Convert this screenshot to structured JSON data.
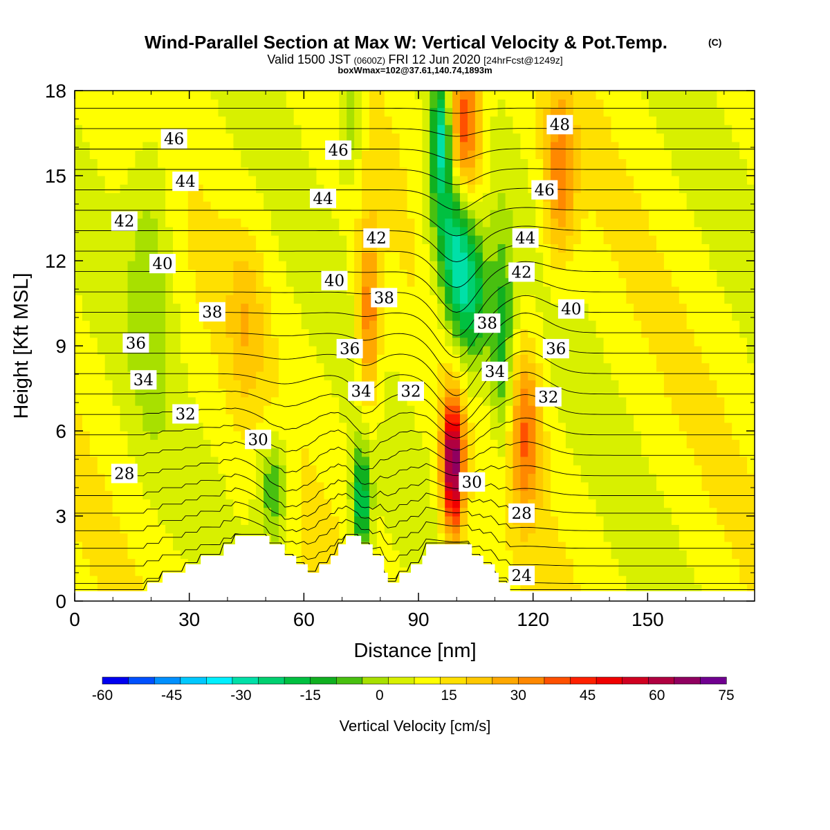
{
  "header": {
    "title": "Wind-Parallel Section at Max W: Vertical Velocity & Pot.Temp.",
    "copyright": "(C)",
    "valid_prefix": "Valid 1500 JST",
    "valid_utc": "(0600Z)",
    "valid_date": "FRI 12 Jun 2020",
    "forecast": "[24hrFcst@1249z]",
    "boxinfo": "boxWmax=102@37.61,140.74,1893m"
  },
  "colorbar": {
    "label": "Vertical Velocity [cm/s]",
    "ticks": [
      "-60",
      "-45",
      "-30",
      "-15",
      "0",
      "15",
      "30",
      "45",
      "60",
      "75"
    ],
    "min": -60,
    "max": 75,
    "step": 5,
    "colors": [
      "#0000f0",
      "#0050ff",
      "#0090ff",
      "#00c8ff",
      "#00f0ff",
      "#00e0a8",
      "#00d070",
      "#00c040",
      "#10b020",
      "#48c010",
      "#a8e000",
      "#d8f000",
      "#ffff00",
      "#ffe000",
      "#ffc800",
      "#ffa800",
      "#ff8800",
      "#ff5000",
      "#ff2000",
      "#f00000",
      "#d00020",
      "#b00040",
      "#900060",
      "#700090"
    ]
  },
  "chart_data": {
    "type": "heatmap",
    "xlabel": "Distance [nm]",
    "ylabel": "Height [Kft MSL]",
    "xlim": [
      0,
      178
    ],
    "ylim": [
      0,
      18
    ],
    "xticks": [
      "0",
      "30",
      "60",
      "90",
      "120",
      "150"
    ],
    "yticks": [
      "0",
      "3",
      "6",
      "9",
      "12",
      "15",
      "18"
    ],
    "contour_field": "Potential temperature",
    "contour_interval": 1,
    "contour_labels": [
      {
        "text": "46",
        "x": 26,
        "y": 16.3
      },
      {
        "text": "44",
        "x": 29,
        "y": 14.8
      },
      {
        "text": "42",
        "x": 13,
        "y": 13.4
      },
      {
        "text": "40",
        "x": 23,
        "y": 11.9
      },
      {
        "text": "38",
        "x": 36,
        "y": 10.2
      },
      {
        "text": "36",
        "x": 16,
        "y": 9.1
      },
      {
        "text": "34",
        "x": 18,
        "y": 7.8
      },
      {
        "text": "32",
        "x": 29,
        "y": 6.6
      },
      {
        "text": "30",
        "x": 48,
        "y": 5.7
      },
      {
        "text": "28",
        "x": 13,
        "y": 4.5
      },
      {
        "text": "46",
        "x": 69,
        "y": 15.9
      },
      {
        "text": "44",
        "x": 65,
        "y": 14.2
      },
      {
        "text": "42",
        "x": 79,
        "y": 12.8
      },
      {
        "text": "40",
        "x": 68,
        "y": 11.3
      },
      {
        "text": "38",
        "x": 81,
        "y": 10.7
      },
      {
        "text": "36",
        "x": 72,
        "y": 8.9
      },
      {
        "text": "34",
        "x": 75,
        "y": 7.4
      },
      {
        "text": "32",
        "x": 88,
        "y": 7.4
      },
      {
        "text": "30",
        "x": 104,
        "y": 4.2
      },
      {
        "text": "48",
        "x": 127,
        "y": 16.8
      },
      {
        "text": "46",
        "x": 123,
        "y": 14.5
      },
      {
        "text": "44",
        "x": 118,
        "y": 12.8
      },
      {
        "text": "42",
        "x": 117,
        "y": 11.6
      },
      {
        "text": "40",
        "x": 130,
        "y": 10.3
      },
      {
        "text": "38",
        "x": 108,
        "y": 9.8
      },
      {
        "text": "36",
        "x": 126,
        "y": 8.9
      },
      {
        "text": "34",
        "x": 110,
        "y": 8.1
      },
      {
        "text": "32",
        "x": 124,
        "y": 7.2
      },
      {
        "text": "28",
        "x": 117,
        "y": 3.1
      },
      {
        "text": "24",
        "x": 117,
        "y": 0.9
      }
    ],
    "w_max": 102
  }
}
